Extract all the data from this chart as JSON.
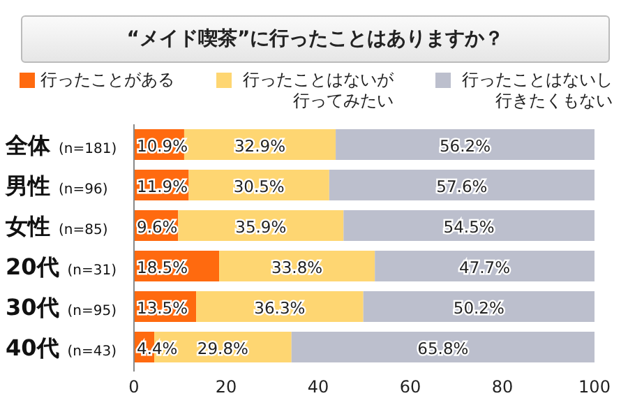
{
  "chart_data": {
    "type": "bar",
    "orientation": "horizontal",
    "stacked": true,
    "title": "“メイド喫茶”に行ったことはありますか？",
    "categories": [
      "全体 (n=181)",
      "男性 (n=96)",
      "女性 (n=85)",
      "20代 (n=31)",
      "30代 (n=95)",
      "40代 (n=43)"
    ],
    "series": [
      {
        "name": "行ったことがある",
        "color": "#ff6a0f",
        "values": [
          10.9,
          11.9,
          9.6,
          18.5,
          13.5,
          4.4
        ],
        "value_labels": [
          "10.9%",
          "11.9%",
          "9.6%",
          "18.5%",
          "13.5%",
          "4.4%"
        ]
      },
      {
        "name": "行ったことはないが行ってみたい",
        "color": "#fed672",
        "values": [
          32.9,
          30.5,
          35.9,
          33.8,
          36.3,
          29.8
        ],
        "value_labels": [
          "32.9%",
          "30.5%",
          "35.9%",
          "33.8%",
          "36.3%",
          "29.8%"
        ]
      },
      {
        "name": "行ったことはないし行きたくもない",
        "color": "#bcbfcd",
        "values": [
          56.2,
          57.6,
          54.5,
          47.7,
          50.2,
          65.8
        ],
        "value_labels": [
          "56.2%",
          "57.6%",
          "54.5%",
          "47.7%",
          "50.2%",
          "65.8%"
        ]
      }
    ],
    "xlim": [
      0,
      100
    ],
    "xticks": [
      0,
      20,
      40,
      60,
      80,
      100
    ],
    "legend": "top",
    "grid": false
  }
}
